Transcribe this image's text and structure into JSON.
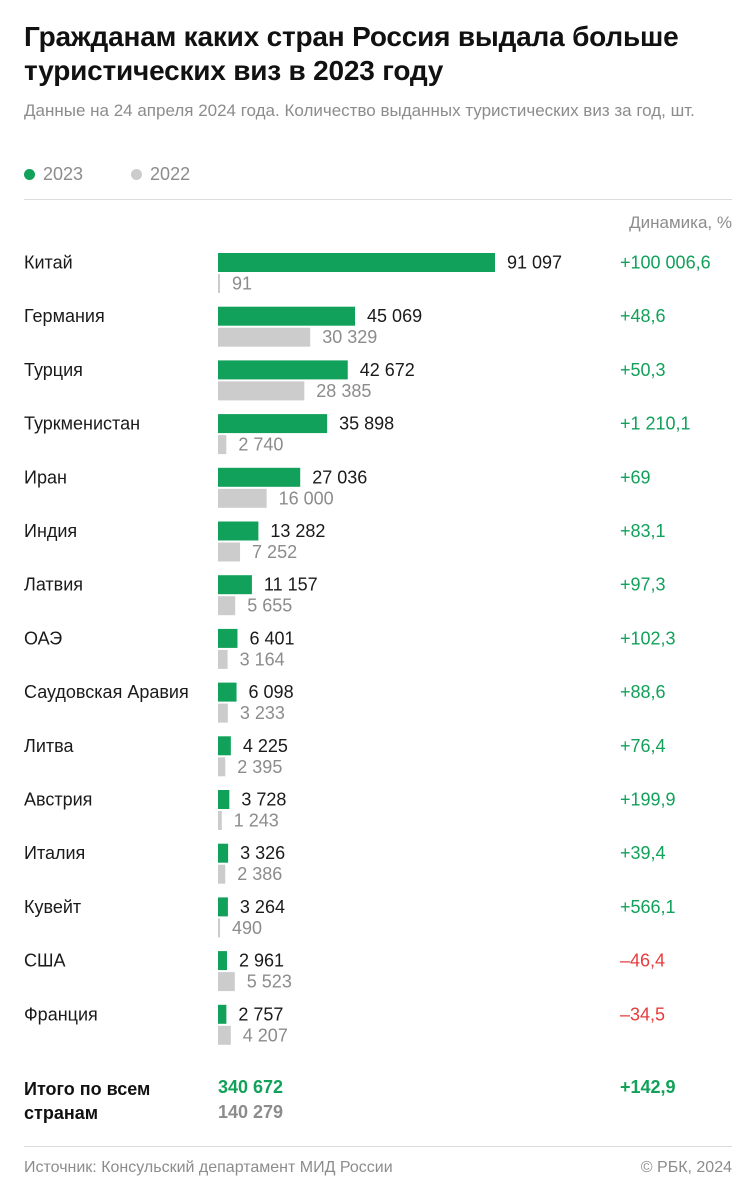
{
  "header": {
    "title": "Гражданам каких стран Россия выдала больше туристических виз в 2023 году",
    "subtitle": "Данные на 24 апреля 2024 года. Количество выданных туристических виз за год, шт."
  },
  "legend": [
    {
      "label": "2023",
      "color": "#12a15a"
    },
    {
      "label": "2022",
      "color": "#cccccc"
    }
  ],
  "dynamics_header": "Динамика, %",
  "colors": {
    "bar2023": "#12a15a",
    "bar2022": "#cccccc",
    "positive": "#12a15a",
    "negative": "#e63c3c"
  },
  "chart_data": {
    "type": "bar",
    "orientation": "horizontal",
    "categories": [
      "Китай",
      "Германия",
      "Турция",
      "Туркменистан",
      "Иран",
      "Индия",
      "Латвия",
      "ОАЭ",
      "Саудовская Аравия",
      "Литва",
      "Австрия",
      "Италия",
      "Кувейт",
      "США",
      "Франция"
    ],
    "series": [
      {
        "name": "2023",
        "values": [
          91097,
          45069,
          42672,
          35898,
          27036,
          13282,
          11157,
          6401,
          6098,
          4225,
          3728,
          3326,
          3264,
          2961,
          2757
        ],
        "labels": [
          "91 097",
          "45 069",
          "42 672",
          "35 898",
          "27 036",
          "13 282",
          "11 157",
          "6 401",
          "6 098",
          "4 225",
          "3 728",
          "3 326",
          "3 264",
          "2 961",
          "2 757"
        ]
      },
      {
        "name": "2022",
        "values": [
          91,
          30329,
          28385,
          2740,
          16000,
          7252,
          5655,
          3164,
          3233,
          2395,
          1243,
          2386,
          490,
          5523,
          4207
        ],
        "labels": [
          "91",
          "30 329",
          "28 385",
          "2 740",
          "16 000",
          "7 252",
          "5 655",
          "3 164",
          "3 233",
          "2 395",
          "1 243",
          "2 386",
          "490",
          "5 523",
          "4 207"
        ]
      }
    ],
    "dynamics": [
      "+100 006,6",
      "+48,6",
      "+50,3",
      "+1 210,1",
      "+69",
      "+83,1",
      "+97,3",
      "+102,3",
      "+88,6",
      "+76,4",
      "+199,9",
      "+39,4",
      "+566,1",
      "–46,4",
      "–34,5"
    ],
    "xlim": [
      0,
      91097
    ]
  },
  "total": {
    "label": "Итого по всем странам",
    "value_2023": "340 672",
    "value_2022": "140 279",
    "dynamics": "+142,9"
  },
  "footer": {
    "source": "Источник: Консульский департамент МИД России",
    "copyright": "© РБК, 2024"
  }
}
